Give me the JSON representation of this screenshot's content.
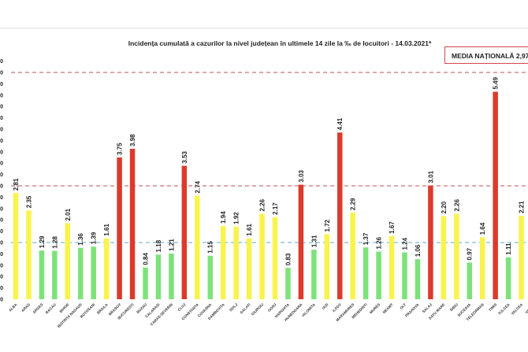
{
  "chart_data": {
    "type": "bar",
    "title": "Incidența cumulată a cazurilor la nivel județean în ultimele 14 zile la ‰ de locuitori - 14.03.2021*",
    "xlabel": "",
    "ylabel": "",
    "ylim": [
      0,
      6.3
    ],
    "ytick_step": 0.3,
    "ytick_labels_visible": "truncated (only trailing '0' visible)",
    "grid": false,
    "categories": [
      "ALBA",
      "ARAD",
      "ARGES",
      "BACAU",
      "BIHOR",
      "BISTRITA NASAUD",
      "BOTOSANI",
      "BRAILA",
      "BRASOV",
      "BUCURESTI",
      "BUZAU",
      "CALARASI",
      "CARAS-SEVERIN",
      "CLUJ",
      "CONSTANTA",
      "COVASNA",
      "DAMBOVITA",
      "DOLJ",
      "GALATI",
      "GIURGIU",
      "GORJ",
      "HARGHITA",
      "HUNEDOARA",
      "IALOMITA",
      "IASI",
      "ILFOV",
      "MARAMURES",
      "MEHEDINTI",
      "MURES",
      "NEAMT",
      "OLT",
      "PRAHOVA",
      "SALAJ",
      "SATU MARE",
      "SIBIU",
      "SUCEAVA",
      "TELEORMAN",
      "TIMIS",
      "TULCEA",
      "VALCEA",
      "VASLUI"
    ],
    "values": [
      2.81,
      2.35,
      1.29,
      1.28,
      2.01,
      1.36,
      1.39,
      1.61,
      3.75,
      3.98,
      0.84,
      1.18,
      1.21,
      3.53,
      2.74,
      1.15,
      1.94,
      1.92,
      1.61,
      2.26,
      2.17,
      0.83,
      3.03,
      1.31,
      1.72,
      4.41,
      2.29,
      1.37,
      1.26,
      1.67,
      1.24,
      1.06,
      3.01,
      2.2,
      2.26,
      0.97,
      1.64,
      5.49,
      1.11,
      2.21,
      null
    ],
    "value_labels": [
      "2.81",
      "2.35",
      "1.29",
      "1.28",
      "2.01",
      "1.36",
      "1.39",
      "1.61",
      "3.75",
      "3.98",
      "0.84",
      "1.18",
      "1.21",
      "3.53",
      "2.74",
      "1.15",
      "1.94",
      "1.92",
      "1.61",
      "2.26",
      "2.17",
      "0.83",
      "3.03",
      "1.31",
      "1.72",
      "4.41",
      "2.29",
      "1.37",
      "1.26",
      "1.67",
      "1.24",
      "1.06",
      "3.01",
      "2.20",
      "2.26",
      "0.97",
      "1.64",
      "5.49",
      "1.11",
      "2.21",
      ""
    ],
    "color_thresholds": {
      "green_below": 1.5,
      "yellow_between": [
        1.5,
        3.0
      ],
      "red_above": 3.0
    },
    "reference_lines": [
      {
        "name": "threshold-1.5",
        "value": 1.5,
        "color": "#5aa9d6",
        "style": "dashed"
      },
      {
        "name": "threshold-3",
        "value": 3.0,
        "color": "#c0504d",
        "style": "dashed"
      },
      {
        "name": "threshold-6",
        "value": 6.0,
        "color": "#c0504d",
        "style": "dashed"
      }
    ],
    "annotation": "MEDIA NAȚIONALĂ 2,97",
    "colors": {
      "green": "#7ee27a",
      "yellow": "#f9f34d",
      "red": "#dc3a2c"
    }
  }
}
